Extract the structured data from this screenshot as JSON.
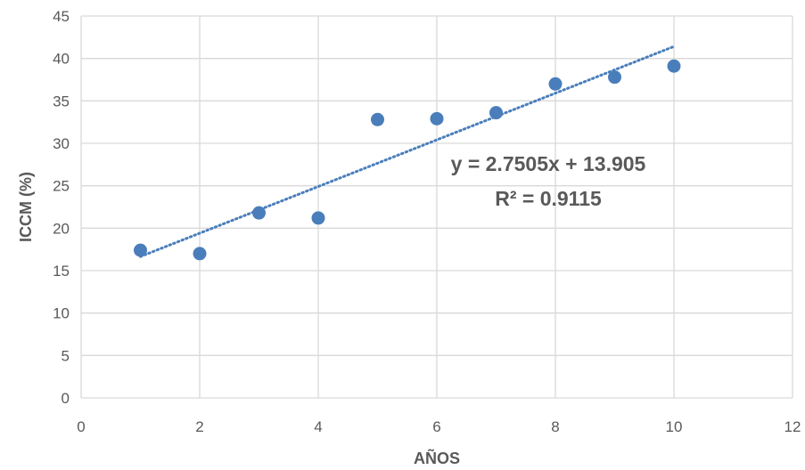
{
  "chart_data": {
    "type": "scatter",
    "xlabel": "AÑOS",
    "ylabel": "ICCM (%)",
    "xlim": [
      0,
      12
    ],
    "ylim": [
      0,
      45
    ],
    "x_ticks": [
      0,
      2,
      4,
      6,
      8,
      10,
      12
    ],
    "y_ticks": [
      0,
      5,
      10,
      15,
      20,
      25,
      30,
      35,
      40,
      45
    ],
    "grid": true,
    "series": [
      {
        "x": [
          1,
          2,
          3,
          4,
          5,
          6,
          7,
          8,
          9,
          10
        ],
        "y": [
          17.4,
          17.0,
          21.8,
          21.2,
          32.8,
          32.9,
          33.6,
          37.0,
          37.8,
          39.1
        ]
      }
    ],
    "trendline": {
      "type": "linear",
      "slope": 2.7505,
      "intercept": 13.905,
      "x_range": [
        1,
        10
      ],
      "equation_label": "y = 2.7505x + 13.905",
      "r2_label": "R² = 0.9115"
    },
    "colors": {
      "marker": "#4a7ebb",
      "trendline": "#4a7ebb",
      "grid": "#d9d9d9",
      "text": "#595959"
    }
  }
}
